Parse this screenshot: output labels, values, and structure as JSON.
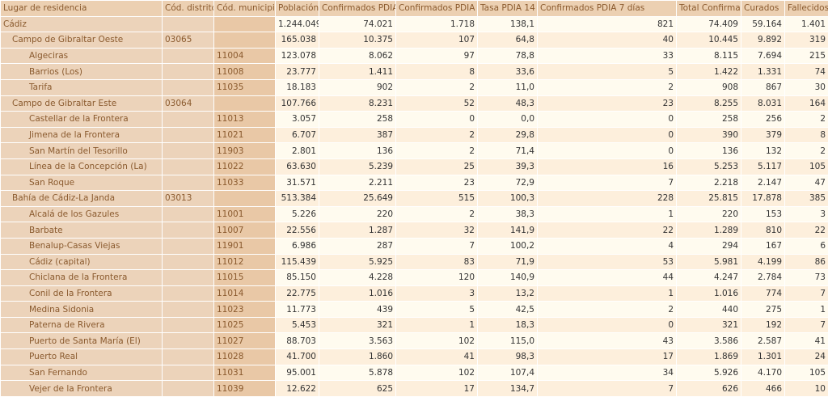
{
  "columns": [
    "Lugar de residencia",
    "Cód. distrito",
    "Cód. municipio",
    "Población",
    "Confirmados PDIA",
    "Confirmados PDIA 14 días",
    "Tasa PDIA 14 días",
    "Confirmados PDIA 7 días",
    "Total Confirmados",
    "Curados",
    "Fallecidos"
  ],
  "rows": [
    {
      "level": 0,
      "name": "Cádiz",
      "distrito": "",
      "municipio": "",
      "values": [
        "1.244.049",
        "74.021",
        "1.718",
        "138,1",
        "821",
        "74.409",
        "59.164",
        "1.401"
      ]
    },
    {
      "level": 1,
      "name": "Campo de Gibraltar Oeste",
      "distrito": "03065",
      "municipio": "",
      "values": [
        "165.038",
        "10.375",
        "107",
        "64,8",
        "40",
        "10.445",
        "9.892",
        "319"
      ]
    },
    {
      "level": 2,
      "name": "Algeciras",
      "distrito": "",
      "municipio": "11004",
      "values": [
        "123.078",
        "8.062",
        "97",
        "78,8",
        "33",
        "8.115",
        "7.694",
        "215"
      ]
    },
    {
      "level": 2,
      "name": "Barrios (Los)",
      "distrito": "",
      "municipio": "11008",
      "values": [
        "23.777",
        "1.411",
        "8",
        "33,6",
        "5",
        "1.422",
        "1.331",
        "74"
      ]
    },
    {
      "level": 2,
      "name": "Tarifa",
      "distrito": "",
      "municipio": "11035",
      "values": [
        "18.183",
        "902",
        "2",
        "11,0",
        "2",
        "908",
        "867",
        "30"
      ]
    },
    {
      "level": 1,
      "name": "Campo de Gibraltar Este",
      "distrito": "03064",
      "municipio": "",
      "values": [
        "107.766",
        "8.231",
        "52",
        "48,3",
        "23",
        "8.255",
        "8.031",
        "164"
      ]
    },
    {
      "level": 2,
      "name": "Castellar de la Frontera",
      "distrito": "",
      "municipio": "11013",
      "values": [
        "3.057",
        "258",
        "0",
        "0,0",
        "0",
        "258",
        "256",
        "2"
      ]
    },
    {
      "level": 2,
      "name": "Jimena de la Frontera",
      "distrito": "",
      "municipio": "11021",
      "values": [
        "6.707",
        "387",
        "2",
        "29,8",
        "0",
        "390",
        "379",
        "8"
      ]
    },
    {
      "level": 2,
      "name": "San Martín del Tesorillo",
      "distrito": "",
      "municipio": "11903",
      "values": [
        "2.801",
        "136",
        "2",
        "71,4",
        "0",
        "136",
        "132",
        "2"
      ]
    },
    {
      "level": 2,
      "name": "Línea de la Concepción (La)",
      "distrito": "",
      "municipio": "11022",
      "values": [
        "63.630",
        "5.239",
        "25",
        "39,3",
        "16",
        "5.253",
        "5.117",
        "105"
      ]
    },
    {
      "level": 2,
      "name": "San Roque",
      "distrito": "",
      "municipio": "11033",
      "values": [
        "31.571",
        "2.211",
        "23",
        "72,9",
        "7",
        "2.218",
        "2.147",
        "47"
      ]
    },
    {
      "level": 1,
      "name": "Bahía de Cádiz-La Janda",
      "distrito": "03013",
      "municipio": "",
      "values": [
        "513.384",
        "25.649",
        "515",
        "100,3",
        "228",
        "25.815",
        "17.878",
        "385"
      ]
    },
    {
      "level": 2,
      "name": "Alcalá de los Gazules",
      "distrito": "",
      "municipio": "11001",
      "values": [
        "5.226",
        "220",
        "2",
        "38,3",
        "1",
        "220",
        "153",
        "3"
      ]
    },
    {
      "level": 2,
      "name": "Barbate",
      "distrito": "",
      "municipio": "11007",
      "values": [
        "22.556",
        "1.287",
        "32",
        "141,9",
        "22",
        "1.289",
        "810",
        "22"
      ]
    },
    {
      "level": 2,
      "name": "Benalup-Casas Viejas",
      "distrito": "",
      "municipio": "11901",
      "values": [
        "6.986",
        "287",
        "7",
        "100,2",
        "4",
        "294",
        "167",
        "6"
      ]
    },
    {
      "level": 2,
      "name": "Cádiz (capital)",
      "distrito": "",
      "municipio": "11012",
      "values": [
        "115.439",
        "5.925",
        "83",
        "71,9",
        "53",
        "5.981",
        "4.199",
        "86"
      ]
    },
    {
      "level": 2,
      "name": "Chiclana de la Frontera",
      "distrito": "",
      "municipio": "11015",
      "values": [
        "85.150",
        "4.228",
        "120",
        "140,9",
        "44",
        "4.247",
        "2.784",
        "73"
      ]
    },
    {
      "level": 2,
      "name": "Conil de la Frontera",
      "distrito": "",
      "municipio": "11014",
      "values": [
        "22.775",
        "1.016",
        "3",
        "13,2",
        "1",
        "1.016",
        "774",
        "7"
      ]
    },
    {
      "level": 2,
      "name": "Medina Sidonia",
      "distrito": "",
      "municipio": "11023",
      "values": [
        "11.773",
        "439",
        "5",
        "42,5",
        "2",
        "440",
        "275",
        "1"
      ]
    },
    {
      "level": 2,
      "name": "Paterna de Rivera",
      "distrito": "",
      "municipio": "11025",
      "values": [
        "5.453",
        "321",
        "1",
        "18,3",
        "0",
        "321",
        "192",
        "7"
      ]
    },
    {
      "level": 2,
      "name": "Puerto de Santa María (El)",
      "distrito": "",
      "municipio": "11027",
      "values": [
        "88.703",
        "3.563",
        "102",
        "115,0",
        "43",
        "3.586",
        "2.587",
        "41"
      ]
    },
    {
      "level": 2,
      "name": "Puerto Real",
      "distrito": "",
      "municipio": "11028",
      "values": [
        "41.700",
        "1.860",
        "41",
        "98,3",
        "17",
        "1.869",
        "1.301",
        "24"
      ]
    },
    {
      "level": 2,
      "name": "San Fernando",
      "distrito": "",
      "municipio": "11031",
      "values": [
        "95.001",
        "5.878",
        "102",
        "107,4",
        "34",
        "5.926",
        "4.170",
        "105"
      ]
    },
    {
      "level": 2,
      "name": "Vejer de la Frontera",
      "distrito": "",
      "municipio": "11039",
      "values": [
        "12.622",
        "625",
        "17",
        "134,7",
        "7",
        "626",
        "466",
        "10"
      ]
    }
  ]
}
